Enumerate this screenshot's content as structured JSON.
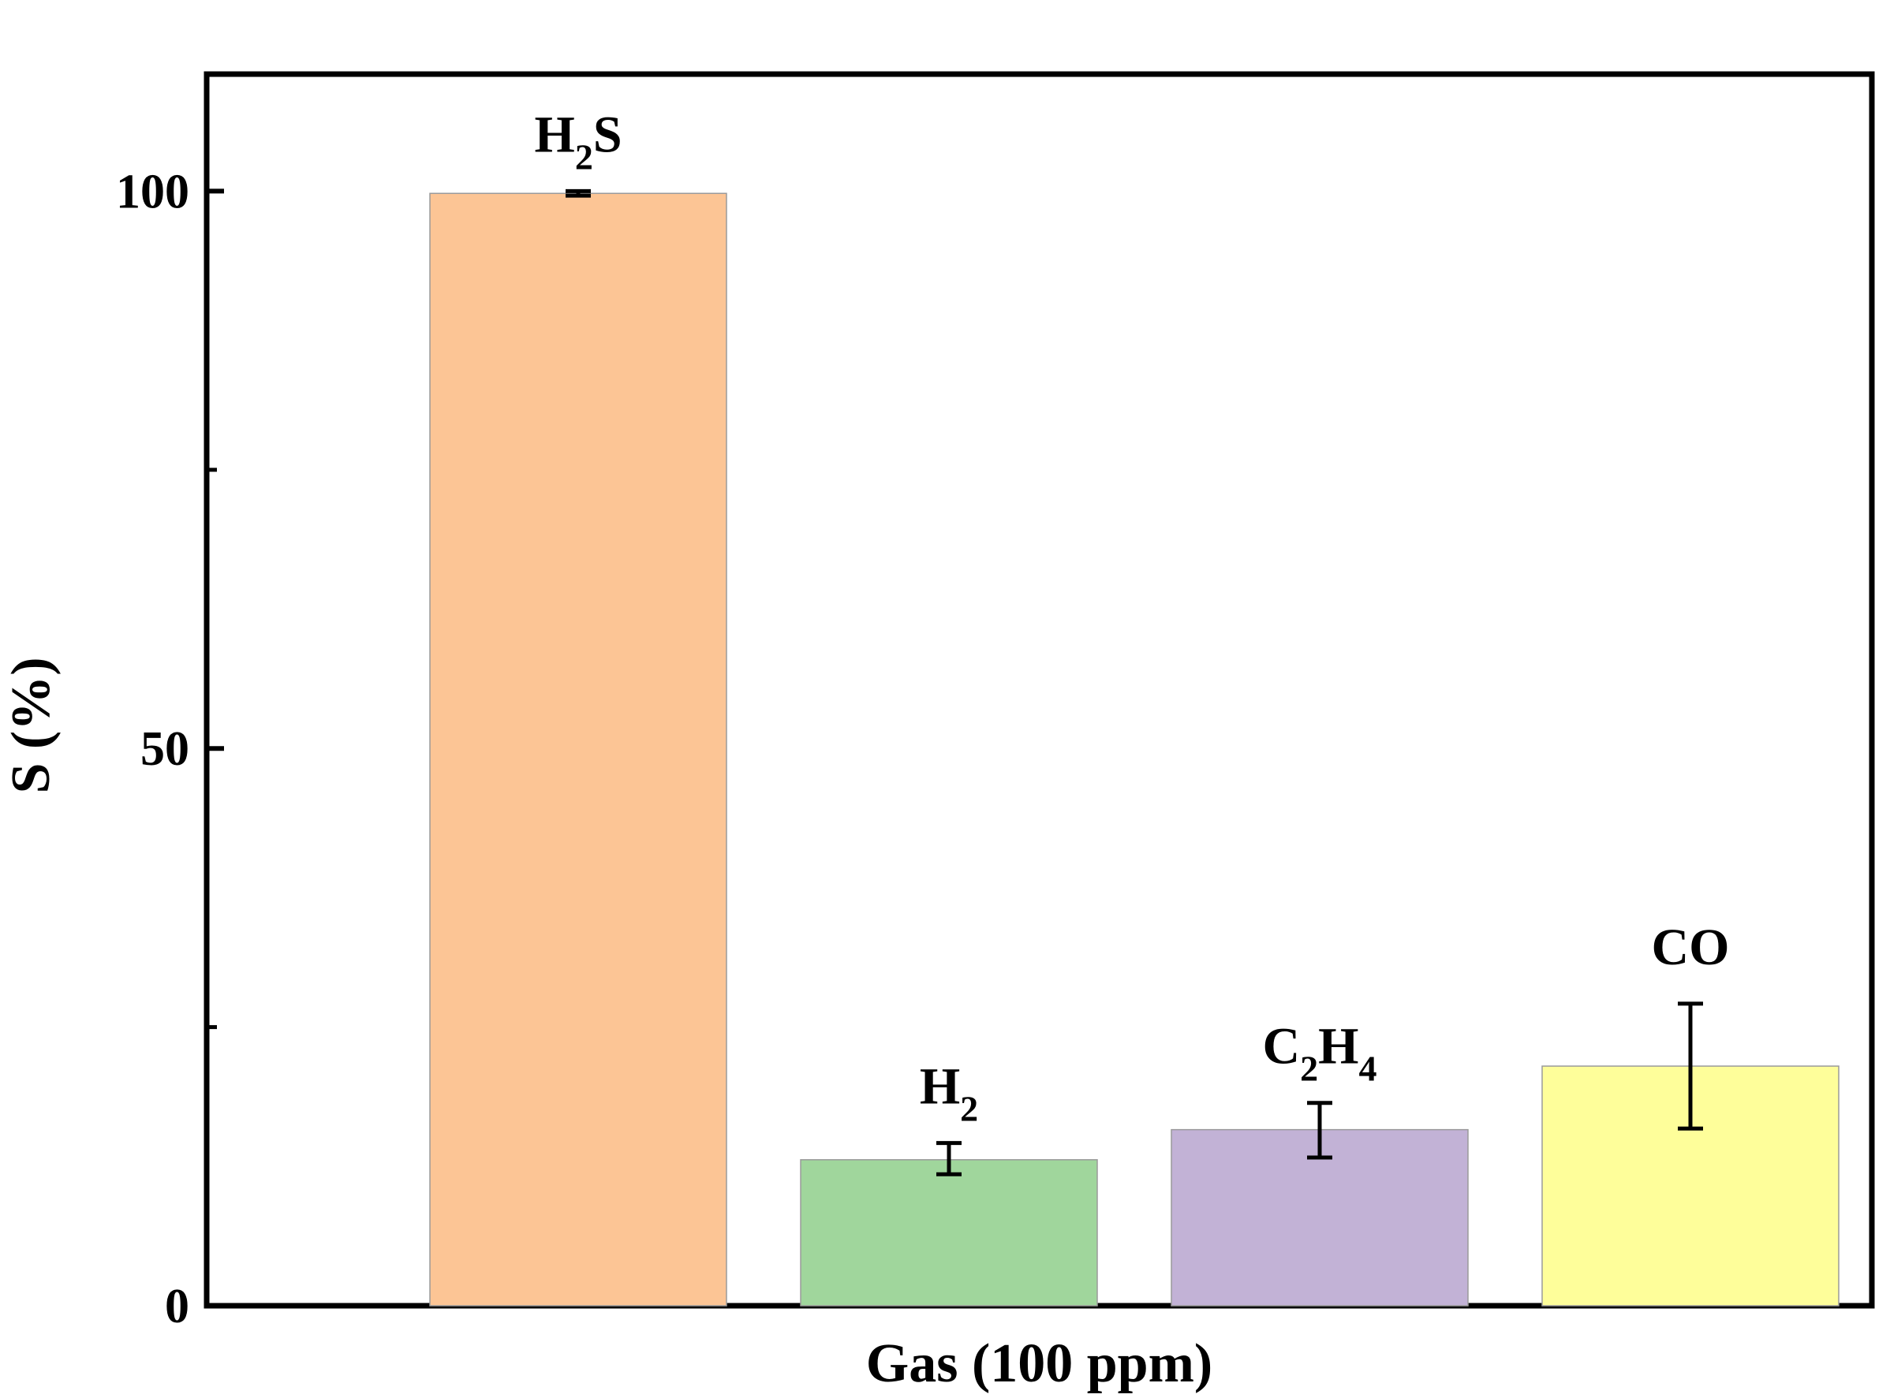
{
  "chart_data": {
    "type": "bar",
    "categories": [
      "H2S",
      "H2",
      "C2H4",
      "CO"
    ],
    "category_labels": [
      [
        {
          "t": "H"
        },
        {
          "t": "2",
          "sub": true
        },
        {
          "t": "S"
        }
      ],
      [
        {
          "t": "H"
        },
        {
          "t": "2",
          "sub": true
        }
      ],
      [
        {
          "t": "C"
        },
        {
          "t": "2",
          "sub": true
        },
        {
          "t": "H"
        },
        {
          "t": "4",
          "sub": true
        }
      ],
      [
        {
          "t": "CO"
        }
      ]
    ],
    "values": [
      99.8,
      13.1,
      15.8,
      21.5
    ],
    "error_low": [
      99.6,
      11.8,
      13.3,
      15.9
    ],
    "error_high": [
      100.0,
      14.6,
      18.2,
      27.1
    ],
    "colors": [
      "#FCC595",
      "#A0D69C",
      "#C2B2D6",
      "#FEFE9A"
    ],
    "xlabel": "Gas (100 ppm)",
    "ylabel": "S (%)",
    "ylim": [
      0,
      110.5
    ],
    "yticks": [
      0,
      50,
      100
    ],
    "minor_yticks": [
      25,
      75
    ],
    "grid": false,
    "legend": "none"
  }
}
